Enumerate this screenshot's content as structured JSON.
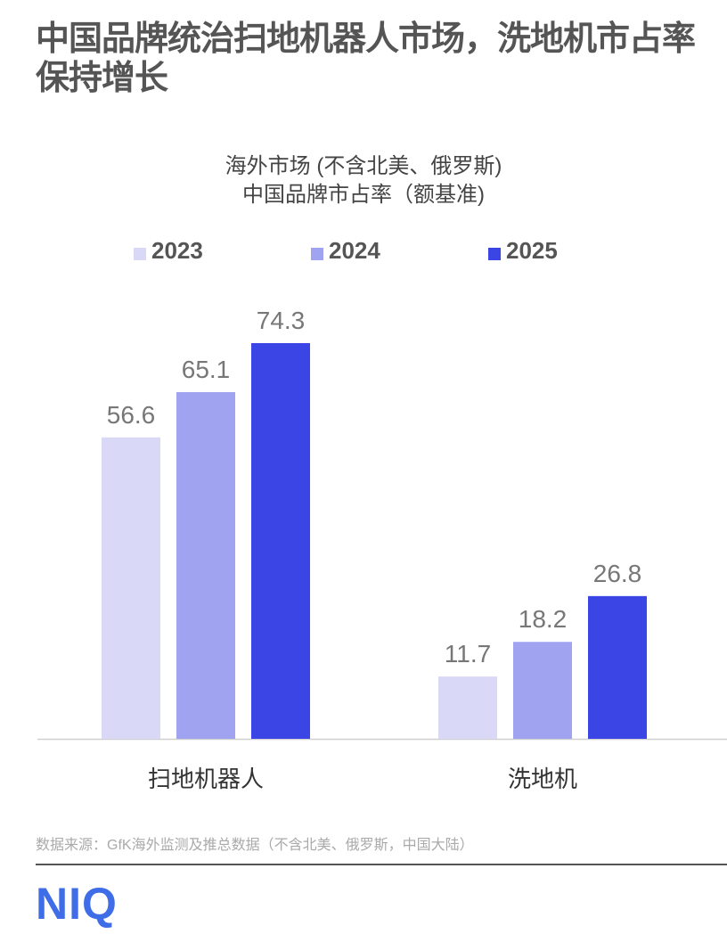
{
  "title": "中国品牌统治扫地机器人市场，洗地机市占率保持增长",
  "chart_data": {
    "type": "bar",
    "title_line1": "海外市场 (不含北美、俄罗斯)",
    "title_line2": "中国品牌市占率（额基准)",
    "categories": [
      "扫地机器人",
      "洗地机"
    ],
    "series": [
      {
        "name": "2023",
        "color": "#d9d9f7",
        "values": [
          56.6,
          11.7
        ]
      },
      {
        "name": "2024",
        "color": "#a0a3ef",
        "values": [
          65.1,
          18.2
        ]
      },
      {
        "name": "2025",
        "color": "#3b45e6",
        "values": [
          74.3,
          26.8
        ]
      }
    ],
    "ylim": [
      0,
      74.3
    ],
    "legend": "top",
    "grid": false
  },
  "source": "数据来源：GfK海外监测及推总数据（不含北美、俄罗斯，中国大陆）",
  "logo": "NIQ"
}
